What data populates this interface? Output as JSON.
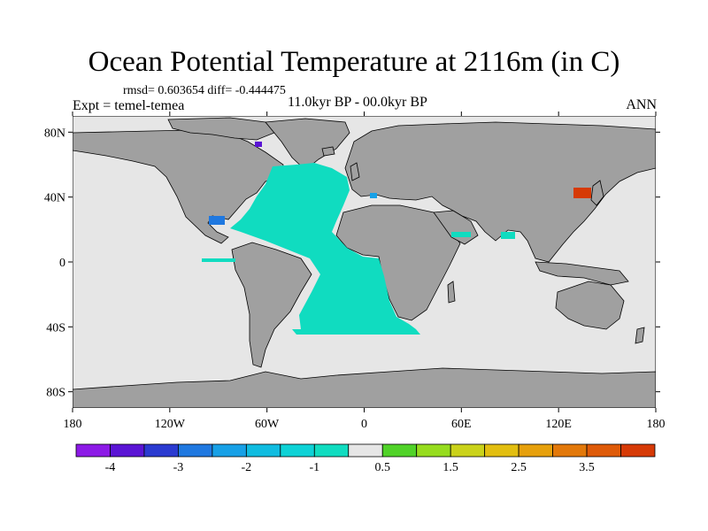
{
  "title": "Ocean Potential Temperature at 2116m (in C)",
  "stats": {
    "text": "rmsd= 0.603654 diff= -0.444475"
  },
  "experiment": "Expt = temel-temea",
  "period": "11.0kyr BP - 00.0kyr BP",
  "season": "ANN",
  "map": {
    "projection": "cylindrical equidistant",
    "lon_range": [
      -180,
      180
    ],
    "lat_range": [
      -90,
      90
    ],
    "land_color": "#a0a0a0",
    "nodata_color": "#e6e6e6",
    "lat_ticks": [
      {
        "value": 80,
        "label": "80N"
      },
      {
        "value": 40,
        "label": "40N"
      },
      {
        "value": 0,
        "label": "0"
      },
      {
        "value": -40,
        "label": "40S"
      },
      {
        "value": -80,
        "label": "80S"
      }
    ],
    "lon_ticks": [
      {
        "value": -180,
        "label": "180"
      },
      {
        "value": -120,
        "label": "120W"
      },
      {
        "value": -60,
        "label": "60W"
      },
      {
        "value": 0,
        "label": "0"
      },
      {
        "value": 60,
        "label": "60E"
      },
      {
        "value": 120,
        "label": "120E"
      },
      {
        "value": 180,
        "label": "180"
      }
    ]
  },
  "colorbar": {
    "colors": [
      "#8c1ae6",
      "#5a14d4",
      "#2a3ad0",
      "#1f78e0",
      "#17a0e6",
      "#10bce0",
      "#0ed2d6",
      "#10dcc0",
      "#e6e6e6",
      "#50d228",
      "#96dc1e",
      "#cad21a",
      "#e2be10",
      "#e6a00c",
      "#e2780a",
      "#de5a08",
      "#d63a06"
    ],
    "labels": [
      {
        "after_box": 1,
        "text": "-4"
      },
      {
        "after_box": 3,
        "text": "-3"
      },
      {
        "after_box": 5,
        "text": "-2"
      },
      {
        "after_box": 7,
        "text": "-1"
      },
      {
        "after_box": 9,
        "text": "0.5"
      },
      {
        "after_box": 11,
        "text": "1.5"
      },
      {
        "after_box": 13,
        "text": "2.5"
      },
      {
        "after_box": 15,
        "text": "3.5"
      }
    ]
  }
}
